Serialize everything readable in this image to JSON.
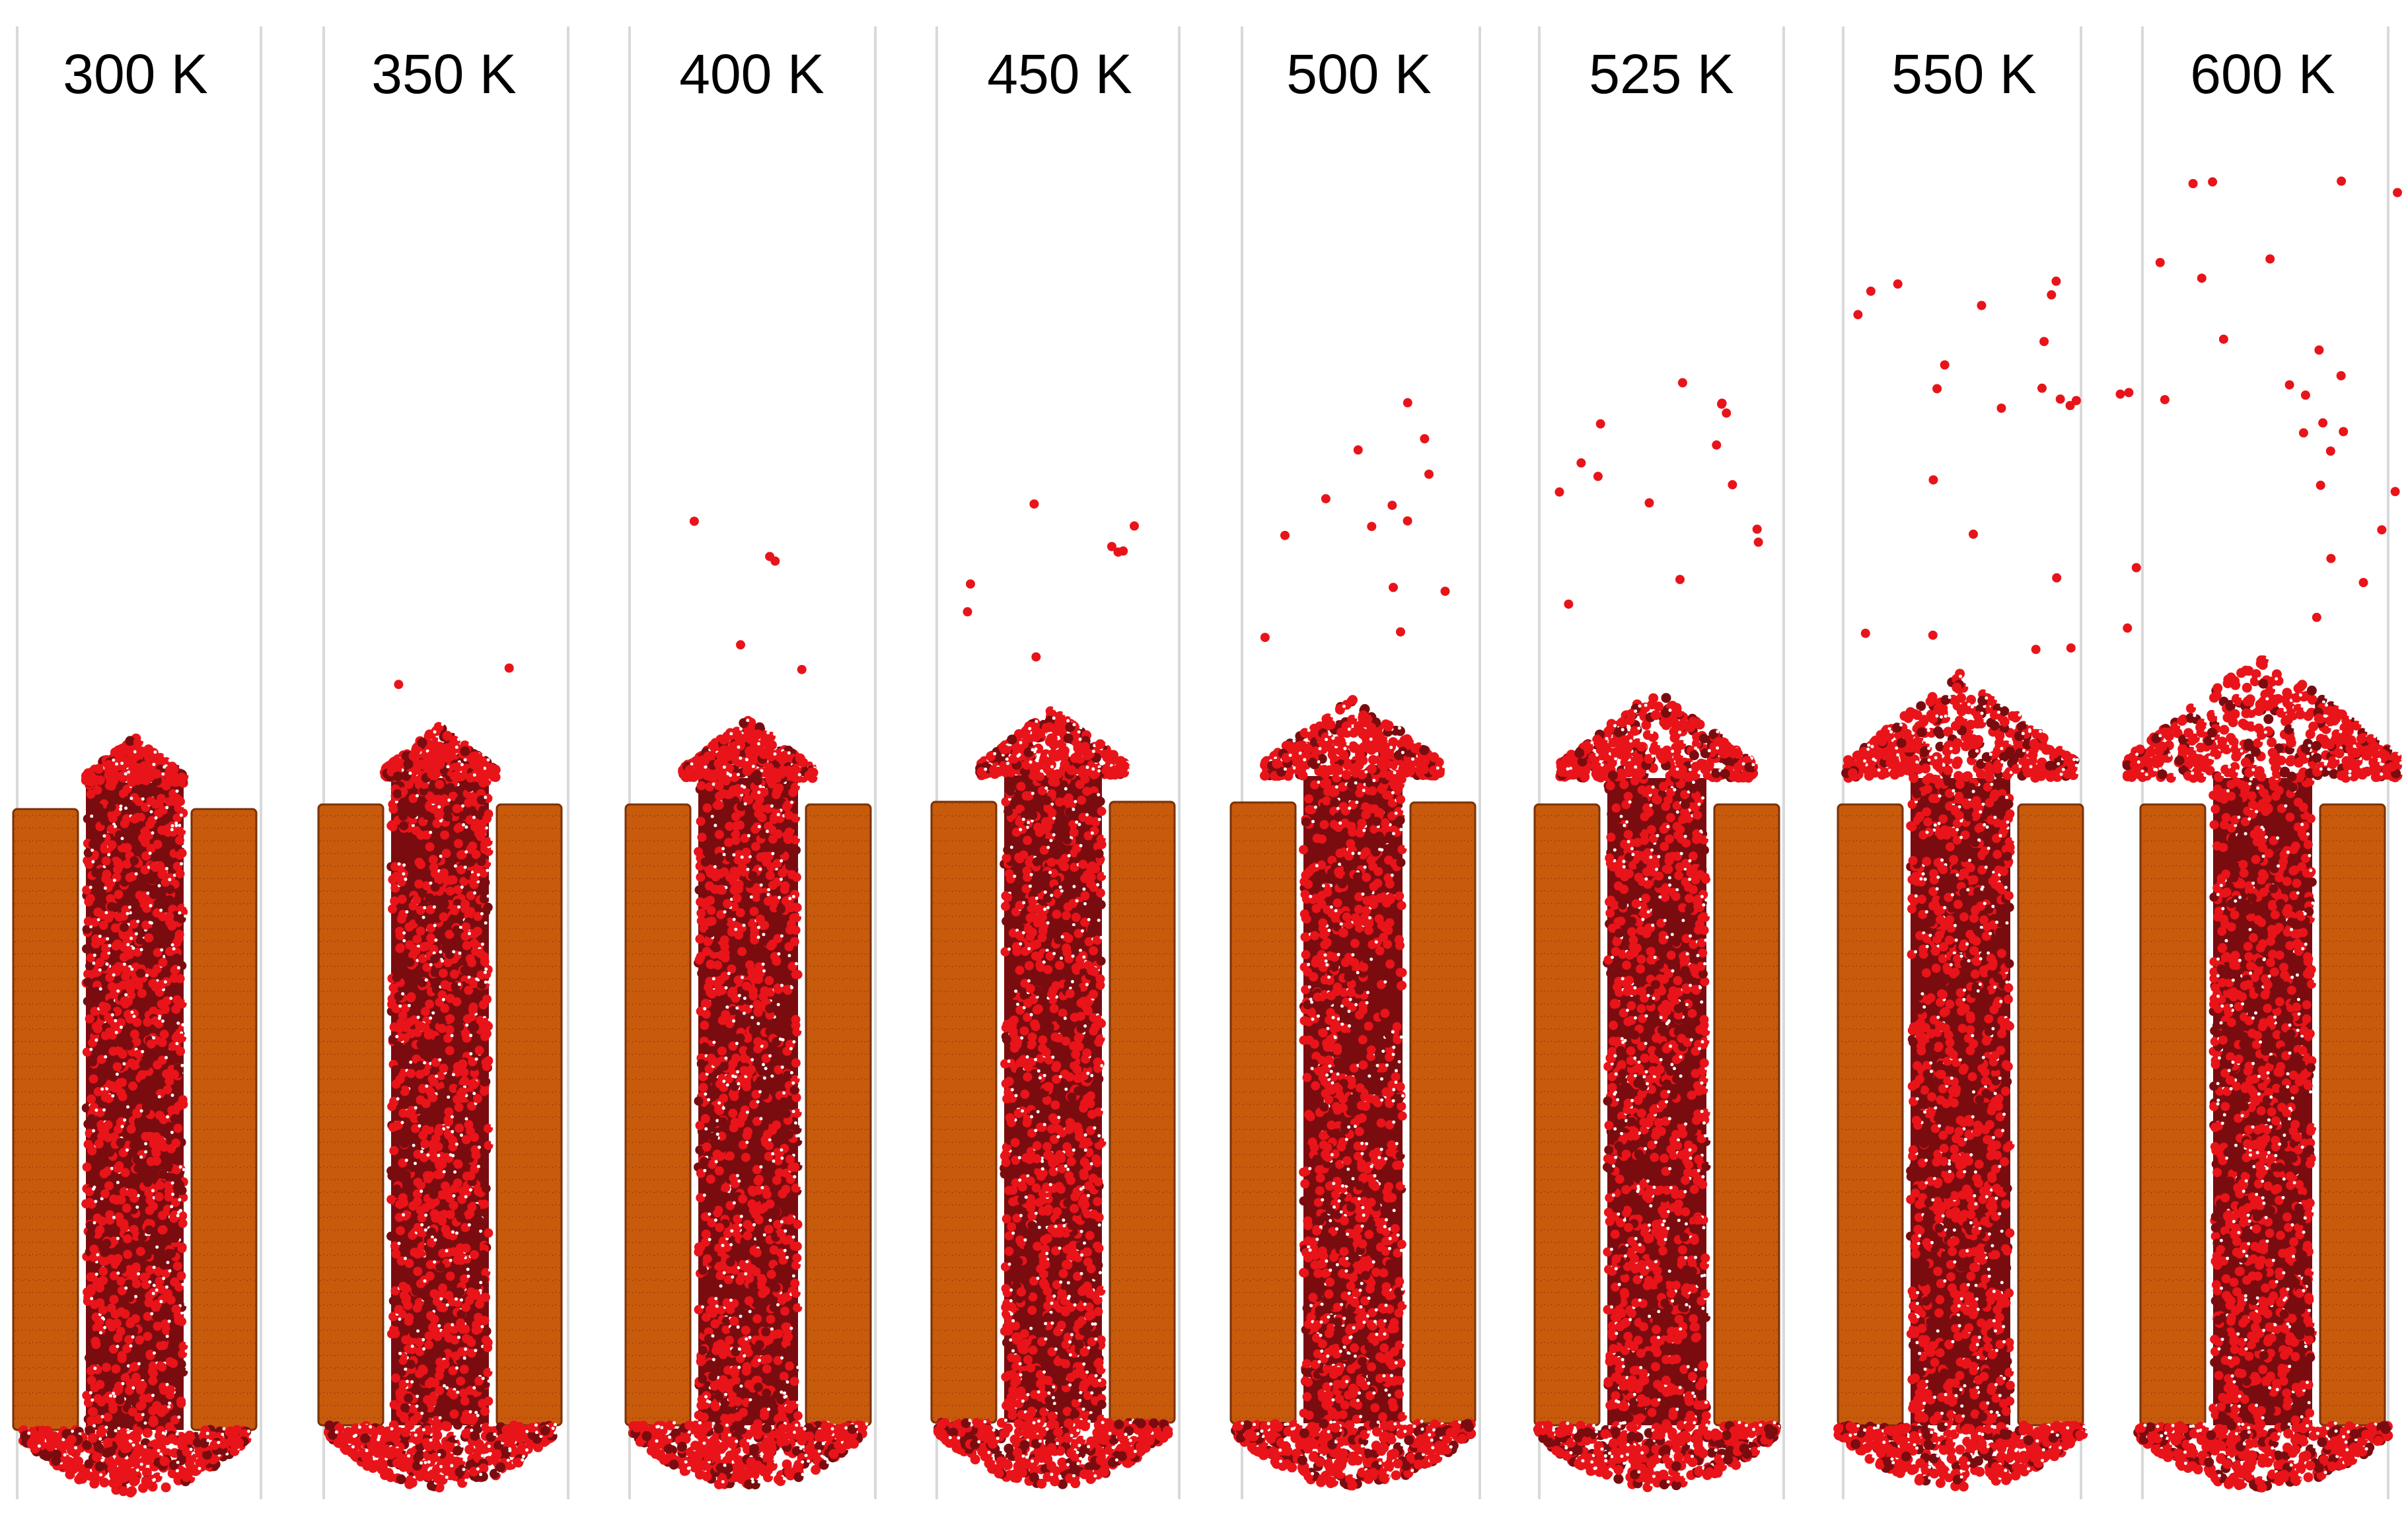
{
  "figure": {
    "panels": [
      {
        "temperature_label": "300 K",
        "temperature_K": 300
      },
      {
        "temperature_label": "350 K",
        "temperature_K": 350
      },
      {
        "temperature_label": "400 K",
        "temperature_K": 400
      },
      {
        "temperature_label": "450 K",
        "temperature_K": 450
      },
      {
        "temperature_label": "500 K",
        "temperature_K": 500
      },
      {
        "temperature_label": "525 K",
        "temperature_K": 525
      },
      {
        "temperature_label": "550 K",
        "temperature_K": 550
      },
      {
        "temperature_label": "600 K",
        "temperature_K": 600
      }
    ],
    "colors": {
      "wall": "#c85a0c",
      "wall_dark": "#7a3208",
      "water": "#e8141a",
      "water_dark": "#7a0c10",
      "hydrogen": "#ffffff",
      "divider": "#d9d9d9",
      "background": "#ffffff"
    }
  }
}
